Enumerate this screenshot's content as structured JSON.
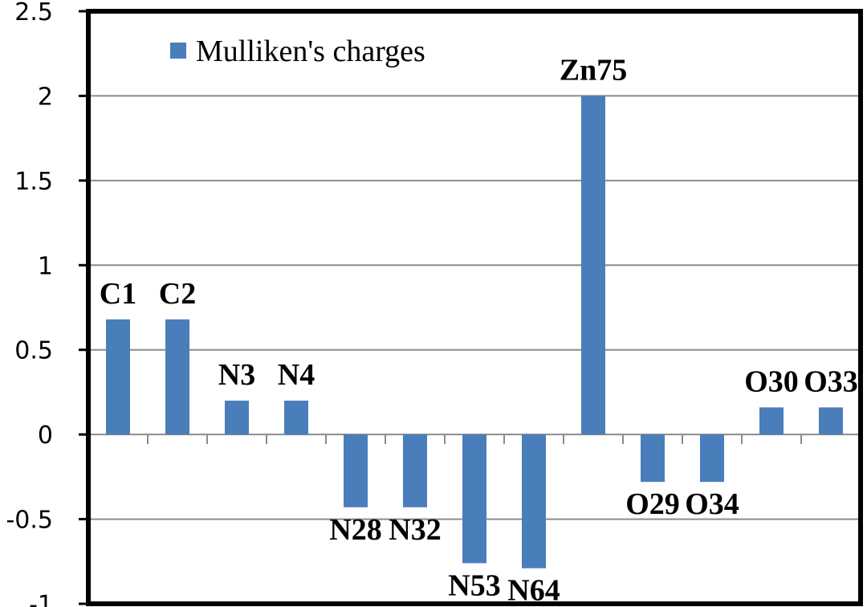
{
  "chart_data": {
    "type": "bar",
    "categories": [
      "C1",
      "C2",
      "N3",
      "N4",
      "N28",
      "N32",
      "N53",
      "N64",
      "Zn75",
      "O29",
      "O34",
      "O30",
      "O33"
    ],
    "series": [
      {
        "name": "Mulliken's charges",
        "color": "#4a7ebb",
        "values": [
          0.68,
          0.68,
          0.2,
          0.2,
          -0.43,
          -0.43,
          -0.76,
          -0.79,
          2.0,
          -0.28,
          -0.28,
          0.16,
          0.16
        ]
      }
    ],
    "data_labels": [
      "C1",
      "C2",
      "N3",
      "N4",
      "N28",
      "N32",
      "N53",
      "N64",
      "Zn75",
      "O29",
      "O34",
      "O30",
      "O33"
    ],
    "yticks": [
      "2.5",
      "2",
      "1.5",
      "1",
      "0.5",
      "0",
      "-0.5",
      "-1"
    ],
    "ylim": [
      -1,
      2.5
    ],
    "grid": true,
    "legend_position": "top-left",
    "title": "",
    "xlabel": "",
    "ylabel": ""
  }
}
